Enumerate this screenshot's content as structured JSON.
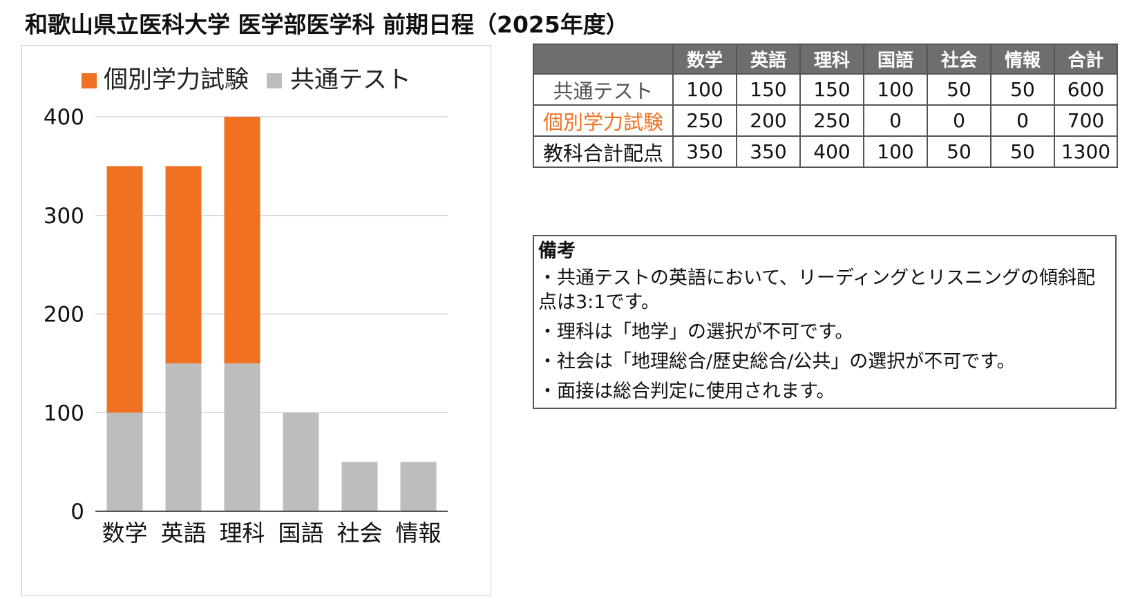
{
  "title": "和歌山県立医科大学 医学部医学科 前期日程（2025年度）",
  "colors": {
    "individual": "#f07122",
    "common": "#bdbdbd",
    "header_bg": "#6e6e6e",
    "common_label": "#555555"
  },
  "legend": [
    "個別学力試験",
    "共通テスト"
  ],
  "chart_data": {
    "type": "bar",
    "stacked": true,
    "categories": [
      "数学",
      "英語",
      "理科",
      "国語",
      "社会",
      "情報"
    ],
    "series": [
      {
        "name": "共通テスト",
        "values": [
          100,
          150,
          150,
          100,
          50,
          50
        ]
      },
      {
        "name": "個別学力試験",
        "values": [
          250,
          200,
          250,
          0,
          0,
          0
        ]
      }
    ],
    "ylim": [
      0,
      400
    ],
    "yticks": [
      0,
      100,
      200,
      300,
      400
    ],
    "grid": true,
    "legend_position": "top",
    "xlabel": "",
    "ylabel": ""
  },
  "table": {
    "headers": [
      "",
      "数学",
      "英語",
      "理科",
      "国語",
      "社会",
      "情報",
      "合計"
    ],
    "rows": [
      {
        "label": "共通テスト",
        "values": [
          "100",
          "150",
          "150",
          "100",
          "50",
          "50",
          "600"
        ]
      },
      {
        "label": "個別学力試験",
        "values": [
          "250",
          "200",
          "250",
          "0",
          "0",
          "0",
          "700"
        ]
      },
      {
        "label": "教科合計配点",
        "values": [
          "350",
          "350",
          "400",
          "100",
          "50",
          "50",
          "1300"
        ]
      }
    ]
  },
  "notes": {
    "title": "備考",
    "items": [
      "・共通テストの英語において、リーディングとリスニングの傾斜配点は3:1です。",
      "・理科は「地学」の選択が不可です。",
      "・社会は「地理総合/歴史総合/公共」の選択が不可です。",
      "・面接は総合判定に使用されます。"
    ]
  }
}
